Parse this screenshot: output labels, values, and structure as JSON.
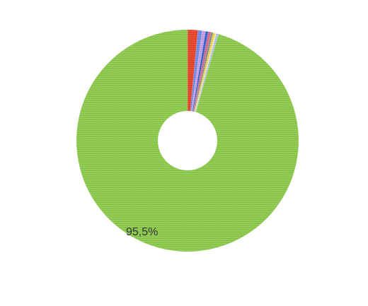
{
  "chart_data": {
    "type": "pie",
    "variant": "donut",
    "title": "",
    "slices": [
      {
        "value": 1.5,
        "color": "#e8472e"
      },
      {
        "value": 0.6,
        "color": "#6f8de8"
      },
      {
        "value": 0.5,
        "color": "#c9a0e4"
      },
      {
        "value": 0.4,
        "color": "#3a5fcf"
      },
      {
        "value": 0.4,
        "color": "#d46a8c"
      },
      {
        "value": 0.3,
        "color": "#8a8a8a"
      },
      {
        "value": 0.3,
        "color": "#e8d34a"
      },
      {
        "value": 0.2,
        "color": "#f4e9a8"
      },
      {
        "value": 0.3,
        "color": "#b0c4e8"
      },
      {
        "value": 95.5,
        "color": "#8fcc4f",
        "label": "95,5%"
      }
    ],
    "legend": "none"
  }
}
